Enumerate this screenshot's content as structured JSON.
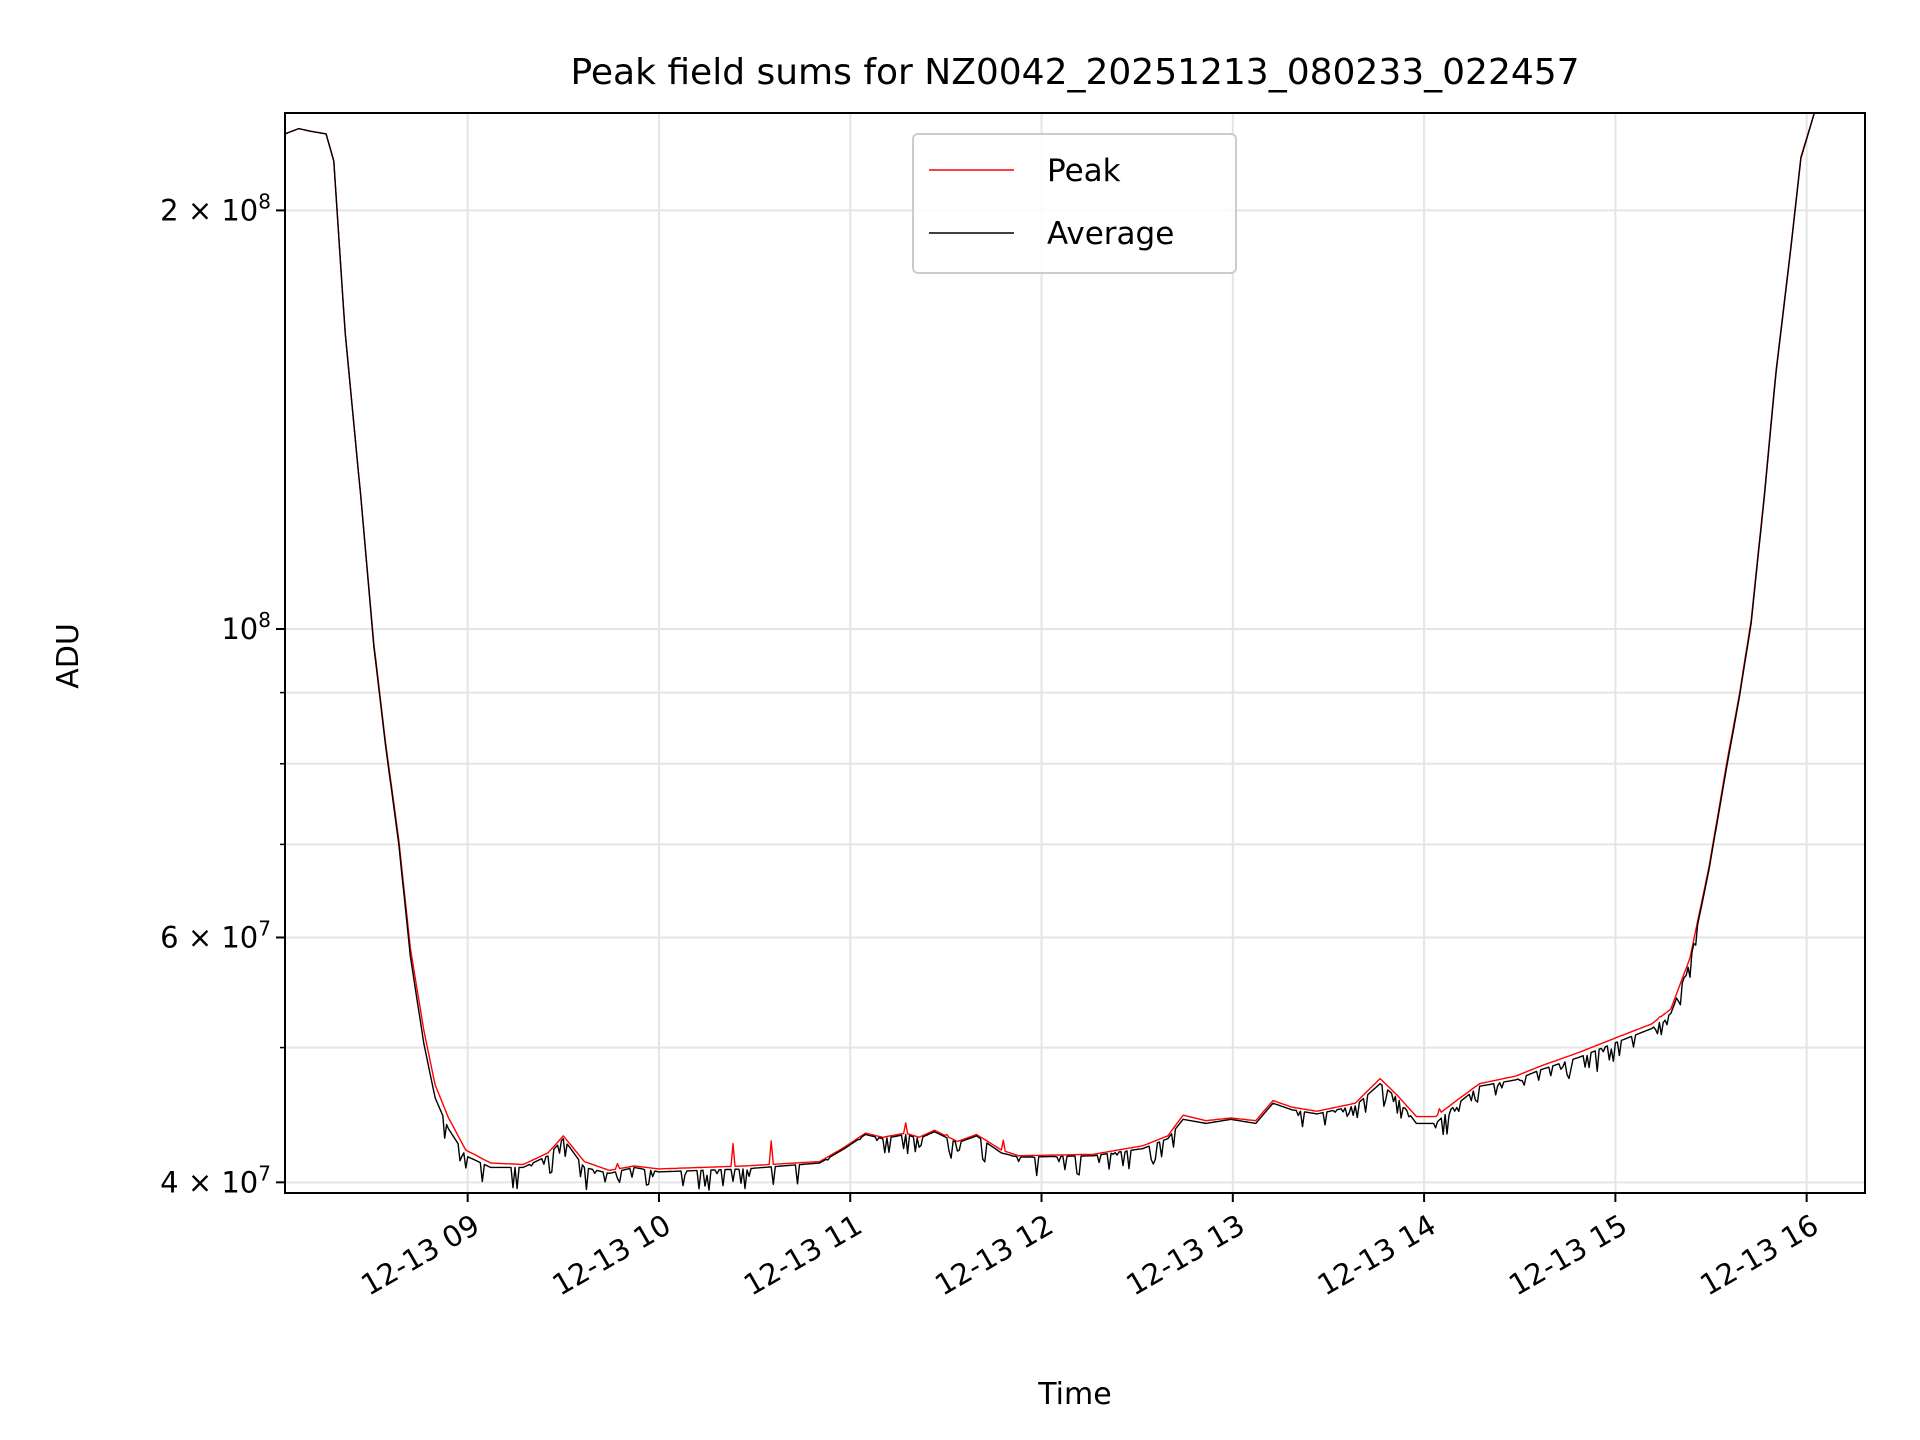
{
  "chart_data": {
    "type": "line",
    "title": "Peak field sums for NZ0042_20251213_080233_022457",
    "xlabel": "Time",
    "ylabel": "ADU",
    "yscale": "log",
    "xlim_hours": [
      8.045,
      16.305
    ],
    "ylim": [
      39300000,
      235000000
    ],
    "grid": true,
    "legend_position": "upper center",
    "x_ticks": [
      {
        "hour": 9,
        "label": "12-13 09"
      },
      {
        "hour": 10,
        "label": "12-13 10"
      },
      {
        "hour": 11,
        "label": "12-13 11"
      },
      {
        "hour": 12,
        "label": "12-13 12"
      },
      {
        "hour": 13,
        "label": "12-13 13"
      },
      {
        "hour": 14,
        "label": "12-13 14"
      },
      {
        "hour": 15,
        "label": "12-13 15"
      },
      {
        "hour": 16,
        "label": "12-13 16"
      }
    ],
    "y_ticks": [
      {
        "value": 40000000,
        "mantissa": "4 × 10",
        "exp": "7"
      },
      {
        "value": 60000000,
        "mantissa": "6 × 10",
        "exp": "7"
      },
      {
        "value": 100000000,
        "mantissa": "10",
        "exp": "8"
      },
      {
        "value": 200000000,
        "mantissa": "2 × 10",
        "exp": "8"
      }
    ],
    "y_minor_ticks": [
      50000000,
      70000000,
      80000000,
      90000000
    ],
    "x_hours": [
      8.045,
      8.117,
      8.18,
      8.26,
      8.3,
      8.36,
      8.44,
      8.51,
      8.57,
      8.64,
      8.7,
      8.77,
      8.83,
      8.9,
      8.99,
      9.12,
      9.29,
      9.42,
      9.5,
      9.61,
      9.74,
      9.87,
      10.0,
      10.45,
      10.84,
      10.97,
      11.08,
      11.17,
      11.29,
      11.36,
      11.44,
      11.56,
      11.66,
      11.79,
      11.88,
      12.27,
      12.53,
      12.66,
      12.74,
      12.86,
      12.99,
      13.12,
      13.21,
      13.31,
      13.44,
      13.64,
      13.77,
      13.86,
      13.96,
      14.06,
      14.16,
      14.29,
      14.48,
      14.61,
      14.81,
      15.0,
      15.19,
      15.29,
      15.39,
      15.49,
      15.58,
      15.65,
      15.71,
      15.78,
      15.84,
      15.91,
      15.97,
      16.04
    ],
    "series": [
      {
        "name": "Peak",
        "color": "#ff0000",
        "values": [
          227000000,
          229000000,
          228000000,
          227000000,
          217000000,
          163000000,
          125000000,
          97500000,
          83000000,
          70500000,
          59000000,
          51500000,
          47000000,
          44500000,
          42200000,
          41300000,
          41200000,
          42000000,
          43200000,
          41400000,
          40800000,
          41100000,
          40900000,
          41100000,
          41400000,
          42400000,
          43400000,
          43100000,
          43400000,
          43100000,
          43600000,
          42800000,
          43300000,
          42200000,
          41800000,
          41900000,
          42500000,
          43200000,
          44700000,
          44300000,
          44500000,
          44300000,
          45800000,
          45300000,
          45000000,
          45600000,
          47500000,
          46200000,
          44600000,
          44600000,
          45700000,
          47100000,
          47700000,
          48500000,
          49600000,
          50800000,
          52000000,
          53300000,
          58000000,
          67500000,
          79800000,
          90000000,
          101500000,
          125500000,
          153500000,
          184500000,
          218500000,
          235000000
        ]
      },
      {
        "name": "Average",
        "color": "#000000",
        "values": [
          227000000,
          229000000,
          228000000,
          227000000,
          217000000,
          163000000,
          125000000,
          97000000,
          82600000,
          70000000,
          58200000,
          50400000,
          46000000,
          43700000,
          41800000,
          41000000,
          41000000,
          41800000,
          43000000,
          41000000,
          40600000,
          41000000,
          40700000,
          40900000,
          41300000,
          42300000,
          43300000,
          43000000,
          43300000,
          43000000,
          43500000,
          42700000,
          43200000,
          42000000,
          41700000,
          41800000,
          42300000,
          43000000,
          44400000,
          44100000,
          44400000,
          44100000,
          45600000,
          45100000,
          44800000,
          45400000,
          47100000,
          46000000,
          44100000,
          44100000,
          45400000,
          46900000,
          47400000,
          48200000,
          49200000,
          50400000,
          51600000,
          52900000,
          57600000,
          67200000,
          79300000,
          89600000,
          101000000,
          125000000,
          153000000,
          184000000,
          218000000,
          235000000
        ]
      }
    ]
  }
}
